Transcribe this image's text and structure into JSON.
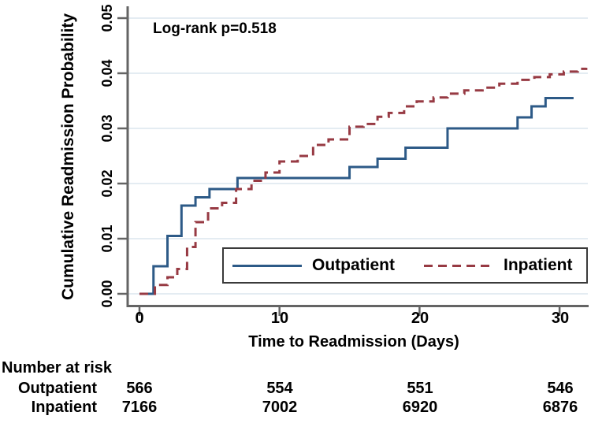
{
  "chart_data": {
    "type": "line",
    "subtype": "cumulative-incidence-step-curves",
    "annotation": "Log-rank p=0.518",
    "xlabel": "Time to Readmission (Days)",
    "ylabel": "Cumulative Readmission Probability",
    "xlim": [
      0,
      32
    ],
    "ylim": [
      0,
      0.05
    ],
    "xticks": [
      0,
      10,
      20,
      30
    ],
    "yticks": [
      "0.00",
      "0.01",
      "0.02",
      "0.03",
      "0.04",
      "0.05"
    ],
    "grid": true,
    "legend_position": "inside-bottom",
    "colors": {
      "axis": "#646464",
      "grid": "#dce6ee"
    },
    "series": [
      {
        "name": "Outpatient",
        "style": "solid",
        "color": "#2d5a87",
        "points": [
          [
            0,
            0
          ],
          [
            1,
            0.005
          ],
          [
            2,
            0.0105
          ],
          [
            3,
            0.016
          ],
          [
            4,
            0.0175
          ],
          [
            5,
            0.019
          ],
          [
            7,
            0.021
          ],
          [
            15,
            0.023
          ],
          [
            17,
            0.0245
          ],
          [
            19,
            0.0265
          ],
          [
            22,
            0.03
          ],
          [
            27,
            0.032
          ],
          [
            28,
            0.034
          ],
          [
            29,
            0.0355
          ],
          [
            31,
            0.0355
          ]
        ]
      },
      {
        "name": "Inpatient",
        "style": "dashed",
        "color": "#973a43",
        "points": [
          [
            0,
            0
          ],
          [
            1.1,
            0.0016
          ],
          [
            2,
            0.003
          ],
          [
            2.7,
            0.0045
          ],
          [
            3.4,
            0.0085
          ],
          [
            4,
            0.013
          ],
          [
            4.9,
            0.0155
          ],
          [
            5.9,
            0.0165
          ],
          [
            6.9,
            0.019
          ],
          [
            8,
            0.0205
          ],
          [
            9,
            0.022
          ],
          [
            10,
            0.024
          ],
          [
            11.3,
            0.025
          ],
          [
            12.4,
            0.027
          ],
          [
            13.5,
            0.028
          ],
          [
            15,
            0.0303
          ],
          [
            16,
            0.0308
          ],
          [
            17,
            0.0321
          ],
          [
            17.8,
            0.0328
          ],
          [
            18.9,
            0.034
          ],
          [
            19.8,
            0.0349
          ],
          [
            21,
            0.0356
          ],
          [
            22,
            0.0363
          ],
          [
            23.2,
            0.0369
          ],
          [
            24.5,
            0.0374
          ],
          [
            25.7,
            0.0381
          ],
          [
            27,
            0.0388
          ],
          [
            28.2,
            0.0393
          ],
          [
            29.3,
            0.0398
          ],
          [
            30.3,
            0.0403
          ],
          [
            31.3,
            0.0408
          ],
          [
            31.9,
            0.041
          ]
        ]
      }
    ]
  },
  "risk_table": {
    "title": "Number at risk",
    "rows": [
      {
        "label": "Outpatient",
        "values": [
          "566",
          "554",
          "551",
          "546"
        ]
      },
      {
        "label": "Inpatient",
        "values": [
          "7166",
          "7002",
          "6920",
          "6876"
        ]
      }
    ]
  }
}
